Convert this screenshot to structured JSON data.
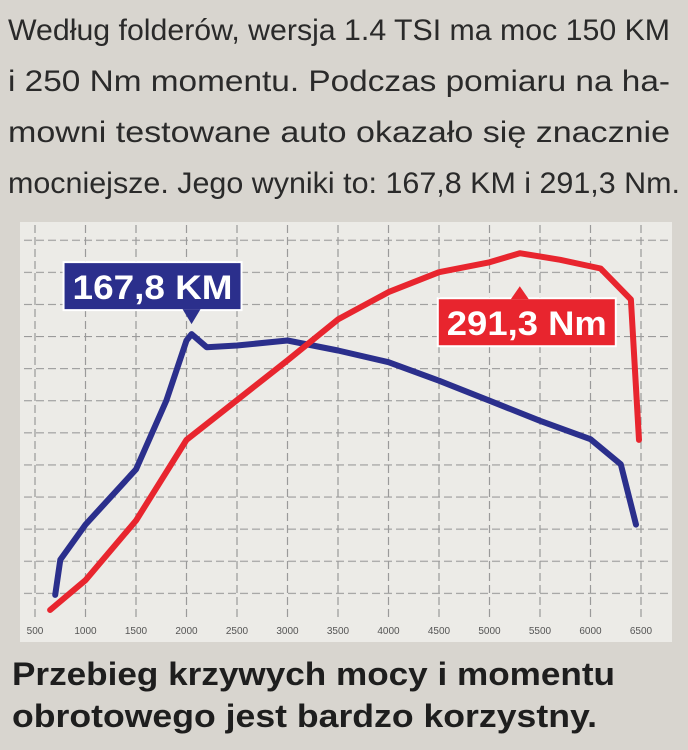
{
  "intro": [
    "Według folderów, wersja 1.4 TSI ma moc 150 KM",
    "i 250 Nm momentu. Podczas pomiaru na ha-",
    "mowni testowane auto okazało się znacznie",
    "mocniejsze. Jego wyniki to: 167,8 KM i 291,3 Nm."
  ],
  "chart_data": {
    "type": "line",
    "xlim": [
      500,
      6500
    ],
    "xticks": [
      500,
      1000,
      1500,
      2000,
      2500,
      3000,
      3500,
      4000,
      4500,
      5000,
      5500,
      6000,
      6500
    ],
    "ylim": [
      0,
      230
    ],
    "y2lim": [
      0,
      310
    ],
    "grid": true,
    "series": [
      {
        "color": "#2b2f8c",
        "x": [
          700,
          750,
          1000,
          1500,
          1800,
          2000,
          2050,
          2200,
          2500,
          3000,
          3500,
          4000,
          4500,
          5000,
          5500,
          6000,
          6300,
          6450
        ],
        "values": [
          12,
          33,
          54,
          87,
          128,
          164,
          167.8,
          160,
          161,
          164,
          158,
          151,
          140,
          128,
          116,
          105,
          90,
          54
        ]
      },
      {
        "color": "#e8252e",
        "axis": "y2",
        "x": [
          650,
          1000,
          1500,
          2000,
          2500,
          3000,
          3500,
          4000,
          4500,
          5000,
          5300,
          5700,
          6100,
          6400,
          6480
        ],
        "values": [
          4,
          28,
          76,
          141,
          173,
          205,
          238,
          260,
          276,
          284,
          291.3,
          286,
          279,
          254,
          141
        ]
      }
    ],
    "annotations": [
      {
        "text": "167,8 KM",
        "x": 2050,
        "y": 167.8,
        "color": "#2b2f8c"
      },
      {
        "text": "291,3 Nm",
        "x": 5300,
        "y": 291.3,
        "axis": "y2",
        "color": "#e8252e"
      }
    ]
  },
  "caption": [
    "Przebieg krzywych mocy i momentu",
    "obrotowego jest bardzo korzystny."
  ]
}
